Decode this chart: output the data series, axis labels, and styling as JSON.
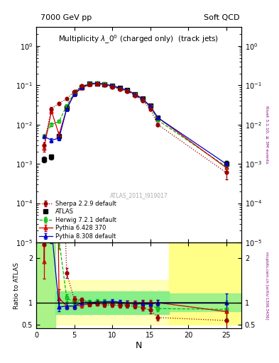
{
  "title_left": "7000 GeV pp",
  "title_right": "Soft QCD",
  "plot_title": "Multiplicity $\\lambda\\_0^0$ (charged only)  (track jets)",
  "rivet_label": "Rivet 3.1.10, ≥ 3M events",
  "arxiv_label": "mcplots.cern.ch [arXiv:1306.3436]",
  "atlas_label": "ATLAS_2011_I919017",
  "xlabel": "N",
  "ylabel_ratio": "Ratio to ATLAS",
  "atlas_x": [
    1,
    2,
    3,
    4,
    5,
    6,
    7,
    8,
    9,
    10,
    11,
    12,
    13,
    14,
    15,
    16,
    25
  ],
  "atlas_y": [
    0.0013,
    0.0015,
    0.005,
    0.027,
    0.065,
    0.09,
    0.108,
    0.112,
    0.105,
    0.095,
    0.085,
    0.075,
    0.06,
    0.045,
    0.03,
    0.015,
    0.001
  ],
  "atlas_yerr": [
    0.0002,
    0.0002,
    0.0005,
    0.002,
    0.004,
    0.005,
    0.005,
    0.005,
    0.005,
    0.005,
    0.004,
    0.004,
    0.003,
    0.003,
    0.002,
    0.001,
    0.0002
  ],
  "herwig_x": [
    1,
    2,
    3,
    4,
    5,
    6,
    7,
    8,
    9,
    10,
    11,
    12,
    13,
    14,
    15,
    16,
    25
  ],
  "herwig_y": [
    0.005,
    0.01,
    0.012,
    0.03,
    0.065,
    0.095,
    0.11,
    0.115,
    0.108,
    0.095,
    0.083,
    0.072,
    0.058,
    0.043,
    0.029,
    0.013,
    0.00085
  ],
  "herwig_yerr": [
    0.0005,
    0.001,
    0.001,
    0.002,
    0.004,
    0.005,
    0.005,
    0.005,
    0.005,
    0.005,
    0.004,
    0.004,
    0.003,
    0.003,
    0.002,
    0.001,
    0.0002
  ],
  "pythia6_x": [
    1,
    2,
    3,
    4,
    5,
    6,
    7,
    8,
    9,
    10,
    11,
    12,
    13,
    14,
    15,
    16,
    25
  ],
  "pythia6_y": [
    0.0025,
    0.022,
    0.0055,
    0.025,
    0.06,
    0.085,
    0.105,
    0.11,
    0.105,
    0.095,
    0.085,
    0.075,
    0.06,
    0.045,
    0.03,
    0.015,
    0.0008
  ],
  "pythia6_yerr": [
    0.0005,
    0.003,
    0.001,
    0.002,
    0.004,
    0.005,
    0.005,
    0.005,
    0.005,
    0.005,
    0.004,
    0.004,
    0.003,
    0.003,
    0.002,
    0.001,
    0.0002
  ],
  "pythia8_x": [
    1,
    2,
    3,
    4,
    5,
    6,
    7,
    8,
    9,
    10,
    11,
    12,
    13,
    14,
    15,
    16,
    25
  ],
  "pythia8_y": [
    0.005,
    0.004,
    0.0045,
    0.025,
    0.06,
    0.09,
    0.108,
    0.113,
    0.107,
    0.098,
    0.086,
    0.074,
    0.059,
    0.044,
    0.029,
    0.015,
    0.001
  ],
  "pythia8_yerr": [
    0.0005,
    0.0005,
    0.0005,
    0.002,
    0.004,
    0.005,
    0.005,
    0.005,
    0.005,
    0.005,
    0.004,
    0.004,
    0.003,
    0.003,
    0.002,
    0.001,
    0.0002
  ],
  "sherpa_x": [
    1,
    2,
    3,
    4,
    5,
    6,
    7,
    8,
    9,
    10,
    11,
    12,
    13,
    14,
    15,
    16,
    25
  ],
  "sherpa_y": [
    0.003,
    0.025,
    0.035,
    0.045,
    0.07,
    0.095,
    0.105,
    0.11,
    0.1,
    0.09,
    0.08,
    0.07,
    0.055,
    0.04,
    0.025,
    0.01,
    0.0006
  ],
  "sherpa_yerr": [
    0.0005,
    0.003,
    0.003,
    0.003,
    0.004,
    0.005,
    0.005,
    0.005,
    0.005,
    0.005,
    0.004,
    0.004,
    0.003,
    0.003,
    0.002,
    0.001,
    0.0002
  ],
  "atlas_color": "#000000",
  "herwig_color": "#00bb00",
  "pythia6_color": "#cc0000",
  "pythia8_color": "#0000cc",
  "sherpa_dot_color": "#990000",
  "ylim_main": [
    1e-05,
    3.0
  ],
  "ylim_ratio": [
    0.42,
    2.35
  ],
  "xlim": [
    0,
    27
  ],
  "bg_color": "#ffffff",
  "yellow_band_color": "#ffff88",
  "green_band_color": "#88ee88"
}
